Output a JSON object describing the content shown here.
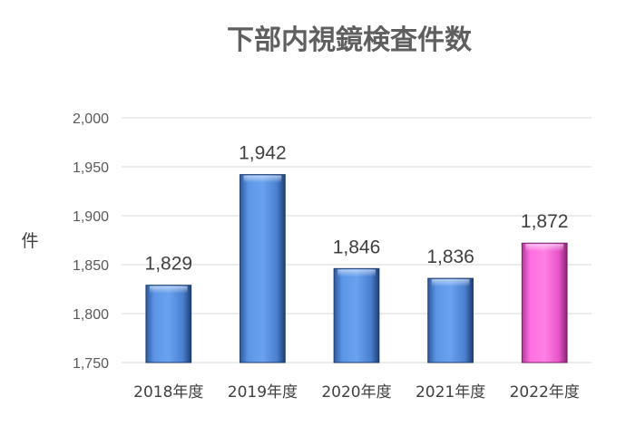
{
  "chart_data": {
    "type": "bar",
    "title": "下部内視鏡検査件数",
    "ylabel": "件",
    "xlabel": "",
    "categories": [
      "2018年度",
      "2019年度",
      "2020年度",
      "2021年度",
      "2022年度"
    ],
    "values": [
      1829,
      1942,
      1846,
      1836,
      1872
    ],
    "data_labels": [
      "1,829",
      "1,942",
      "1,846",
      "1,836",
      "1,872"
    ],
    "ylim": [
      1750,
      2000
    ],
    "yticks": [
      1750,
      1800,
      1850,
      1900,
      1950,
      2000
    ],
    "ytick_labels": [
      "1,750",
      "1,800",
      "1,850",
      "1,900",
      "1,950",
      "2,000"
    ],
    "grid": true,
    "colors": [
      "#4f86d9",
      "#4f86d9",
      "#4f86d9",
      "#4f86d9",
      "#ff66dd"
    ]
  }
}
